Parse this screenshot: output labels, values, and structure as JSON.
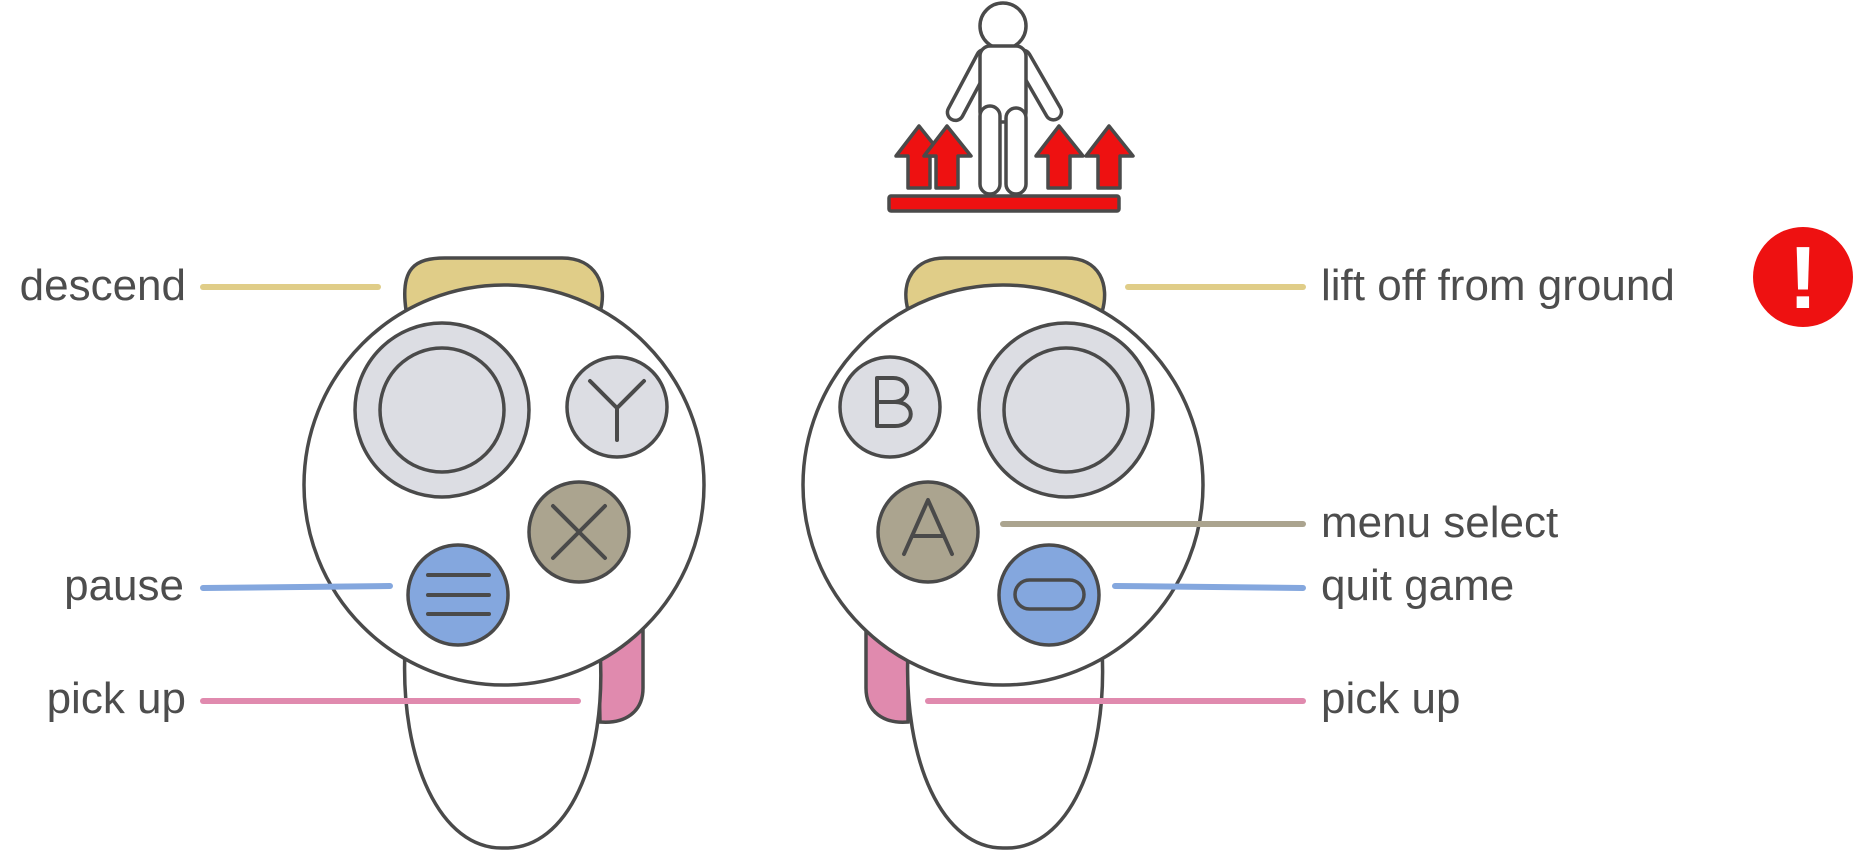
{
  "labels": {
    "descend": "descend",
    "pause": "pause",
    "pick_up_left": "pick up",
    "lift_off": "lift off from ground",
    "menu_select": "menu select",
    "quit_game": "quit game",
    "pick_up_right": "pick up"
  },
  "buttons": {
    "y": "Y",
    "b": "B",
    "a": "A"
  },
  "icons": {
    "warning_glyph": "!",
    "left_controller": "left-controller",
    "right_controller": "right-controller",
    "lift_figure": "person-lift-icon"
  },
  "colors": {
    "trigger_yellow": "#e0cd88",
    "grip_pink": "#e08aae",
    "face_gray": "#dcdde3",
    "khaki": "#aba48f",
    "blue": "#84a7de",
    "red": "#ee1111",
    "outline": "#4a4a4a",
    "text": "#4d4d4d"
  }
}
